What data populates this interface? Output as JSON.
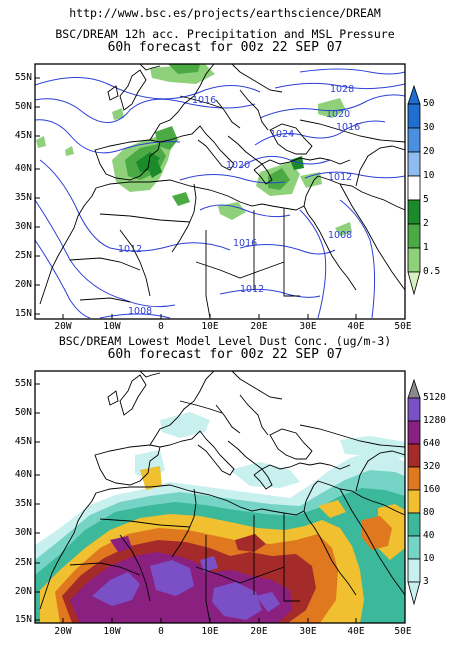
{
  "header": {
    "url": "http://www.bsc.es/projects/earthscience/DREAM"
  },
  "map1": {
    "title_line1": "BSC/DREAM 12h acc. Precipitation and MSL Pressure",
    "title_line2": "60h forecast for 00z 22 SEP 07",
    "lat_labels": [
      "55N",
      "50N",
      "45N",
      "40N",
      "35N",
      "30N",
      "25N",
      "20N",
      "15N"
    ],
    "lon_labels": [
      "20W",
      "10W",
      "0",
      "10E",
      "20E",
      "30E",
      "40E",
      "50E"
    ],
    "isobar_labels": [
      "1016",
      "1028",
      "1020",
      "1016",
      "1024",
      "1020",
      "1012",
      "1016",
      "1008",
      "1012",
      "1012",
      "1008"
    ],
    "colorbar_labels": [
      "50",
      "30",
      "20",
      "10",
      "5",
      "2",
      "1",
      "0.5"
    ],
    "colorbar_colors": [
      "#1f6fd0",
      "#4a8fe0",
      "#8fbcf0",
      "#ffffff",
      "#1b8a2a",
      "#4caa45",
      "#8fd07a",
      "#d6f0c2"
    ]
  },
  "map2": {
    "title_line1": "BSC/DREAM Lowest Model Level Dust Conc. (ug/m-3)",
    "title_line2": "60h forecast for 00z 22 SEP 07",
    "lat_labels": [
      "55N",
      "50N",
      "45N",
      "40N",
      "35N",
      "30N",
      "25N",
      "20N",
      "15N"
    ],
    "lon_labels": [
      "20W",
      "10W",
      "0",
      "10E",
      "20E",
      "30E",
      "40E",
      "50E"
    ],
    "colorbar_labels": [
      "5120",
      "1280",
      "640",
      "320",
      "160",
      "80",
      "40",
      "10",
      "3"
    ],
    "colorbar_colors": [
      "#8a8a8a",
      "#7b4fc6",
      "#8a2080",
      "#a52a2a",
      "#e07820",
      "#f0c030",
      "#3cb89a",
      "#76d4c6",
      "#c8f0ee"
    ]
  }
}
